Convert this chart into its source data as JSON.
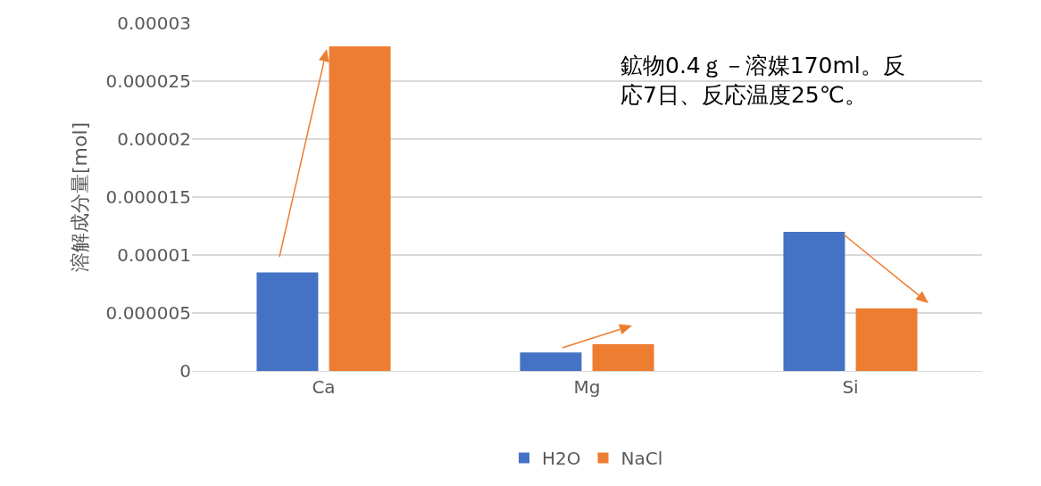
{
  "chart_data": {
    "type": "bar",
    "ylabel": "溶解成分量[mol]",
    "categories": [
      "Ca",
      "Mg",
      "Si"
    ],
    "series": [
      {
        "name": "H2O",
        "color": "#4472c4",
        "values": [
          8.5e-06,
          1.6e-06,
          1.2e-05
        ]
      },
      {
        "name": "NaCl",
        "color": "#ed7d31",
        "values": [
          2.8e-05,
          2.3e-06,
          5.4e-06
        ]
      }
    ],
    "ylim": [
      0,
      3e-05
    ],
    "yticks": [
      0,
      {
        "value": 5e-06,
        "label": "0.000005"
      },
      {
        "value": 1e-05,
        "label": "0.00001"
      },
      {
        "value": 1.5e-05,
        "label": "0.000015"
      },
      {
        "value": 2e-05,
        "label": "0.00002"
      },
      {
        "value": 2.5e-05,
        "label": "0.000025"
      },
      {
        "value": 3e-05,
        "label": "0.00003"
      }
    ],
    "grid": "y",
    "legend": "bottom",
    "annotations": [
      "鉱物0.4ｇ－溶媒170ml。反応7日、反応温度25℃。"
    ]
  }
}
